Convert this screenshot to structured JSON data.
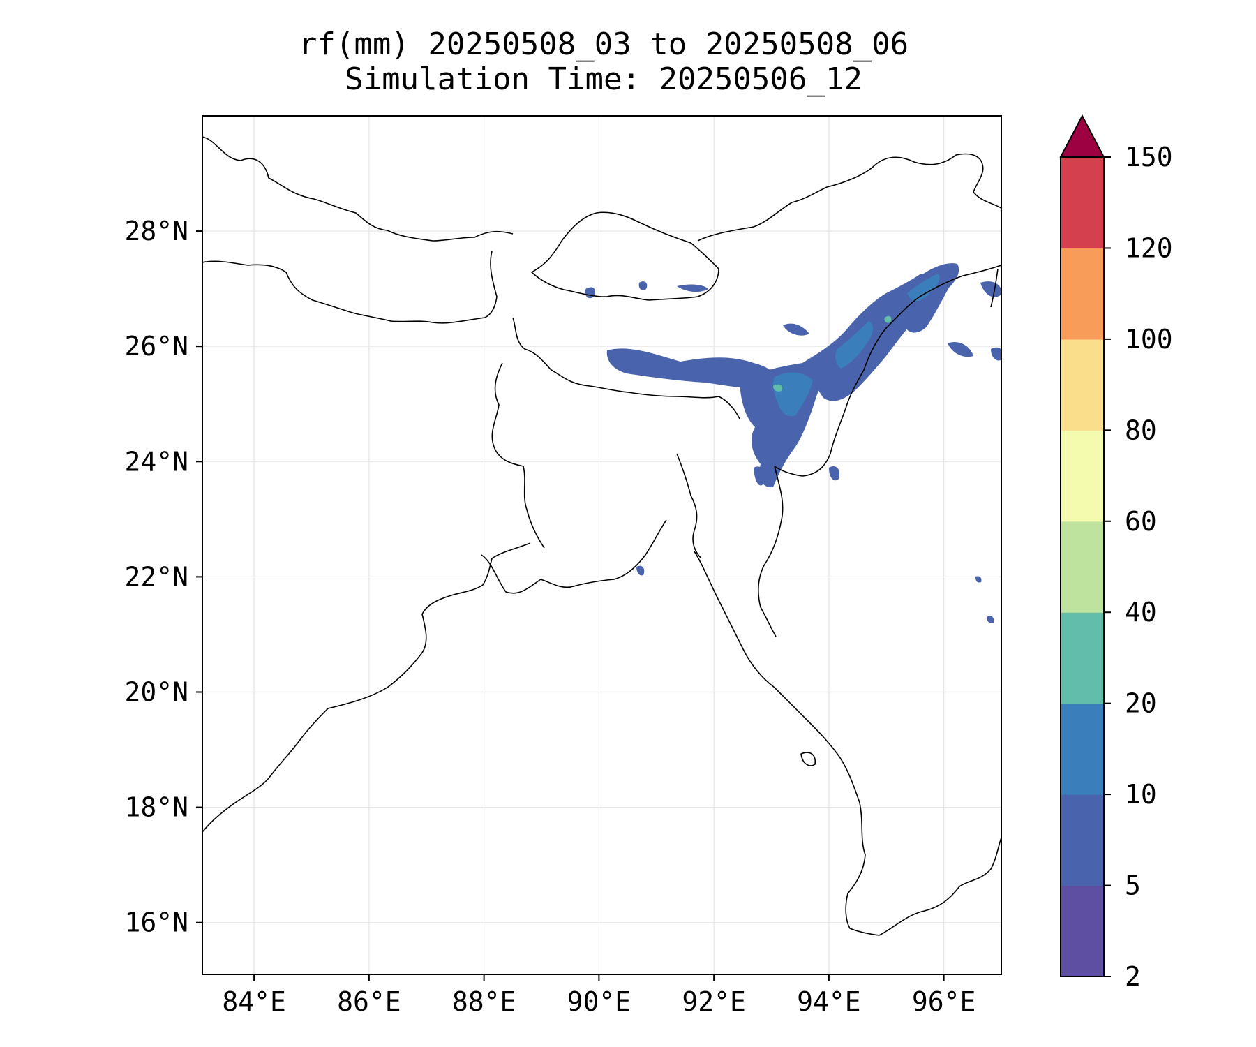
{
  "title": {
    "line1": "rf(mm) 20250508_03 to 20250508_06",
    "line2": "Simulation Time: 20250506_12"
  },
  "map": {
    "lon_range": [
      83.1,
      97.0
    ],
    "lat_range": [
      15.1,
      30.0
    ],
    "gridlines": true,
    "x_ticks": [
      {
        "value": 84,
        "label": "84°E"
      },
      {
        "value": 86,
        "label": "86°E"
      },
      {
        "value": 88,
        "label": "88°E"
      },
      {
        "value": 90,
        "label": "90°E"
      },
      {
        "value": 92,
        "label": "92°E"
      },
      {
        "value": 94,
        "label": "94°E"
      },
      {
        "value": 96,
        "label": "96°E"
      }
    ],
    "y_ticks": [
      {
        "value": 16,
        "label": "16°N"
      },
      {
        "value": 18,
        "label": "18°N"
      },
      {
        "value": 20,
        "label": "20°N"
      },
      {
        "value": 22,
        "label": "22°N"
      },
      {
        "value": 24,
        "label": "24°N"
      },
      {
        "value": 26,
        "label": "26°N"
      },
      {
        "value": 28,
        "label": "28°N"
      }
    ]
  },
  "colorbar": {
    "levels": [
      {
        "label": "2",
        "color": "#5e4fa2"
      },
      {
        "label": "5",
        "color": "#4a63ad"
      },
      {
        "label": "10",
        "color": "#3a7fbc"
      },
      {
        "label": "20",
        "color": "#63bdab"
      },
      {
        "label": "40",
        "color": "#bde39e"
      },
      {
        "label": "60",
        "color": "#f4fbae"
      },
      {
        "label": "80",
        "color": "#fbde8c"
      },
      {
        "label": "100",
        "color": "#f89c5a"
      },
      {
        "label": "120",
        "color": "#d4404e"
      },
      {
        "label": "150",
        "color": "#9e0142"
      }
    ],
    "extend": "max"
  },
  "colors": {
    "rain_light": "#5e4fa2",
    "rain_moderate": "#4a63ad",
    "rain_heavy": "#3a7fbc",
    "rain_peak": "#63bdab"
  }
}
